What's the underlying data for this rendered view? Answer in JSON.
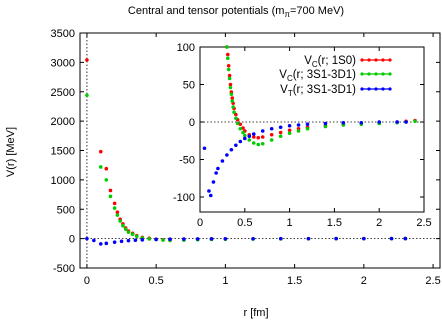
{
  "chart_data": [
    {
      "type": "scatter",
      "title": "Central and tensor potentials (m",
      "title_sub": "π",
      "title_tail": "=700 MeV)",
      "xlabel": "r [fm]",
      "ylabel": "V(r) [MeV]",
      "xlim": [
        -0.05,
        2.55
      ],
      "ylim": [
        -500,
        3500
      ],
      "xticks": [
        "0",
        "0.5",
        "1",
        "1.5",
        "2",
        "2.5"
      ],
      "xtick_values": [
        0,
        0.5,
        1,
        1.5,
        2,
        2.5
      ],
      "yticks": [
        "-500",
        "0",
        "500",
        "1000",
        "1500",
        "2000",
        "2500",
        "3000",
        "3500"
      ],
      "ytick_values": [
        -500,
        0,
        500,
        1000,
        1500,
        2000,
        2500,
        3000,
        3500
      ],
      "grid": false,
      "zero_lines": true,
      "series": [
        {
          "name": "V_C(r; 1S0)",
          "color": "#ff0000",
          "points": [
            [
              0.0,
              3040
            ],
            [
              0.1,
              1480
            ],
            [
              0.14,
              1190
            ],
            [
              0.17,
              820
            ],
            [
              0.2,
              600
            ],
            [
              0.22,
              450
            ],
            [
              0.24,
              330
            ],
            [
              0.26,
              250
            ],
            [
              0.28,
              180
            ],
            [
              0.3,
              130
            ],
            [
              0.33,
              90
            ],
            [
              0.36,
              50
            ],
            [
              0.4,
              20
            ],
            [
              0.45,
              5
            ],
            [
              0.5,
              -10
            ],
            [
              0.55,
              -20
            ],
            [
              0.6,
              -25
            ],
            [
              0.7,
              -20
            ],
            [
              0.8,
              -15
            ],
            [
              0.9,
              -10
            ],
            [
              1.0,
              -8
            ],
            [
              1.2,
              -5
            ],
            [
              1.4,
              -3
            ],
            [
              1.6,
              -2
            ],
            [
              1.8,
              -1
            ],
            [
              2.0,
              0
            ],
            [
              2.2,
              2
            ],
            [
              2.3,
              3
            ]
          ]
        },
        {
          "name": "V_C(r; 3S1-3D1)",
          "color": "#00cc00",
          "points": [
            [
              0.0,
              2440
            ],
            [
              0.1,
              1220
            ],
            [
              0.14,
              1000
            ],
            [
              0.17,
              720
            ],
            [
              0.2,
              520
            ],
            [
              0.22,
              400
            ],
            [
              0.24,
              300
            ],
            [
              0.26,
              220
            ],
            [
              0.28,
              160
            ],
            [
              0.3,
              110
            ],
            [
              0.33,
              75
            ],
            [
              0.36,
              40
            ],
            [
              0.4,
              10
            ],
            [
              0.45,
              -5
            ],
            [
              0.5,
              -15
            ],
            [
              0.55,
              -25
            ],
            [
              0.6,
              -30
            ],
            [
              0.7,
              -25
            ],
            [
              0.8,
              -18
            ],
            [
              0.9,
              -12
            ],
            [
              1.0,
              -9
            ],
            [
              1.2,
              -6
            ],
            [
              1.4,
              -4
            ],
            [
              1.6,
              -2
            ],
            [
              1.8,
              -1
            ],
            [
              2.0,
              0
            ],
            [
              2.2,
              1
            ],
            [
              2.3,
              2
            ]
          ]
        },
        {
          "name": "V_T(r; 3S1-3D1)",
          "color": "#0000ff",
          "points": [
            [
              0.0,
              0
            ],
            [
              0.05,
              -30
            ],
            [
              0.1,
              -90
            ],
            [
              0.14,
              -80
            ],
            [
              0.2,
              -60
            ],
            [
              0.25,
              -45
            ],
            [
              0.3,
              -35
            ],
            [
              0.35,
              -27
            ],
            [
              0.4,
              -21
            ],
            [
              0.5,
              -14
            ],
            [
              0.6,
              -10
            ],
            [
              0.7,
              -7
            ],
            [
              0.8,
              -5
            ],
            [
              0.9,
              -4
            ],
            [
              1.0,
              -3
            ],
            [
              1.2,
              -2
            ],
            [
              1.4,
              -1
            ],
            [
              1.6,
              -1
            ],
            [
              1.8,
              0
            ],
            [
              2.0,
              0
            ],
            [
              2.2,
              0
            ],
            [
              2.3,
              0
            ]
          ]
        }
      ]
    },
    {
      "type": "scatter",
      "title": "",
      "xlabel": "",
      "ylabel": "",
      "xlim": [
        0,
        2.5
      ],
      "ylim": [
        -120,
        100
      ],
      "xticks": [
        "0",
        "0.5",
        "1",
        "1.5",
        "2",
        "2.5"
      ],
      "xtick_values": [
        0,
        0.5,
        1,
        1.5,
        2,
        2.5
      ],
      "yticks": [
        "-100",
        "-50",
        "0",
        "50",
        "100"
      ],
      "ytick_values": [
        -100,
        -50,
        0,
        50,
        100
      ],
      "legend": "top-right",
      "zero_lines": true,
      "series": [
        {
          "name": "V_C(r; 1S0)",
          "color": "#ff0000",
          "points": [
            [
              0.3,
              100
            ],
            [
              0.31,
              90
            ],
            [
              0.32,
              75
            ],
            [
              0.33,
              62
            ],
            [
              0.34,
              50
            ],
            [
              0.35,
              40
            ],
            [
              0.36,
              32
            ],
            [
              0.37,
              25
            ],
            [
              0.38,
              18
            ],
            [
              0.4,
              10
            ],
            [
              0.42,
              3
            ],
            [
              0.45,
              -3
            ],
            [
              0.48,
              -8
            ],
            [
              0.5,
              -12
            ],
            [
              0.55,
              -17
            ],
            [
              0.6,
              -20
            ],
            [
              0.65,
              -21
            ],
            [
              0.7,
              -20
            ],
            [
              0.8,
              -17
            ],
            [
              0.9,
              -14
            ],
            [
              1.0,
              -11
            ],
            [
              1.1,
              -9
            ],
            [
              1.2,
              -7
            ],
            [
              1.4,
              -5
            ],
            [
              1.6,
              -3
            ],
            [
              1.8,
              -2
            ],
            [
              2.0,
              -1
            ],
            [
              2.2,
              0
            ],
            [
              2.3,
              1
            ],
            [
              2.4,
              2
            ]
          ]
        },
        {
          "name": "V_C(r; 3S1-3D1)",
          "color": "#00cc00",
          "points": [
            [
              0.3,
              100
            ],
            [
              0.31,
              85
            ],
            [
              0.32,
              70
            ],
            [
              0.33,
              58
            ],
            [
              0.34,
              46
            ],
            [
              0.35,
              37
            ],
            [
              0.36,
              28
            ],
            [
              0.37,
              20
            ],
            [
              0.38,
              13
            ],
            [
              0.4,
              5
            ],
            [
              0.42,
              -2
            ],
            [
              0.45,
              -9
            ],
            [
              0.48,
              -14
            ],
            [
              0.5,
              -18
            ],
            [
              0.55,
              -24
            ],
            [
              0.6,
              -28
            ],
            [
              0.65,
              -30
            ],
            [
              0.7,
              -29
            ],
            [
              0.8,
              -24
            ],
            [
              0.9,
              -19
            ],
            [
              1.0,
              -15
            ],
            [
              1.1,
              -12
            ],
            [
              1.2,
              -9
            ],
            [
              1.4,
              -6
            ],
            [
              1.6,
              -4
            ],
            [
              1.8,
              -3
            ],
            [
              2.0,
              -2
            ],
            [
              2.2,
              -1
            ],
            [
              2.3,
              0
            ],
            [
              2.4,
              1
            ]
          ]
        },
        {
          "name": "V_T(r; 3S1-3D1)",
          "color": "#0000ff",
          "points": [
            [
              0.05,
              -35
            ],
            [
              0.1,
              -92
            ],
            [
              0.12,
              -98
            ],
            [
              0.15,
              -80
            ],
            [
              0.18,
              -68
            ],
            [
              0.2,
              -62
            ],
            [
              0.25,
              -52
            ],
            [
              0.3,
              -44
            ],
            [
              0.35,
              -37
            ],
            [
              0.4,
              -31
            ],
            [
              0.45,
              -26
            ],
            [
              0.5,
              -22
            ],
            [
              0.55,
              -19
            ],
            [
              0.6,
              -16
            ],
            [
              0.7,
              -12
            ],
            [
              0.8,
              -9
            ],
            [
              0.9,
              -7
            ],
            [
              1.0,
              -5
            ],
            [
              1.1,
              -4
            ],
            [
              1.2,
              -3
            ],
            [
              1.4,
              -2
            ],
            [
              1.6,
              -1
            ],
            [
              1.8,
              -1
            ],
            [
              2.0,
              0
            ],
            [
              2.2,
              0
            ],
            [
              2.3,
              0
            ]
          ]
        }
      ]
    }
  ],
  "legend_labels": [
    {
      "pre": "V",
      "sub": "C",
      "post": "(r; 1S0)"
    },
    {
      "pre": "V",
      "sub": "C",
      "post": "(r; 3S1-3D1)"
    },
    {
      "pre": "V",
      "sub": "T",
      "post": "(r; 3S1-3D1)"
    }
  ]
}
